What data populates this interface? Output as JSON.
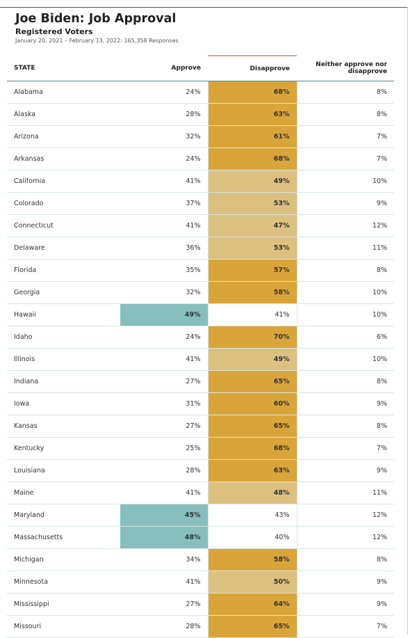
{
  "header": {
    "title": "Joe Biden: Job Approval",
    "subtitle": "Registered Voters",
    "dateline": "January 20, 2021 – February 13, 2022: 165,358 Responses"
  },
  "colors": {
    "disapprove_high": "#d9a53a",
    "disapprove_mid": "#dcc080",
    "approve_high": "#86bfbe",
    "neutral": "#ffffff",
    "grid_line": "#d6e6e1",
    "header_line": "#4a8a8a"
  },
  "chart_data": {
    "type": "table",
    "columns": [
      "STATE",
      "Approve",
      "Disapprove",
      "Neither approve nor disapprove"
    ],
    "rows": [
      {
        "state": "Alabama",
        "approve": 24,
        "disapprove": 68,
        "neither": 8
      },
      {
        "state": "Alaska",
        "approve": 28,
        "disapprove": 63,
        "neither": 8
      },
      {
        "state": "Arizona",
        "approve": 32,
        "disapprove": 61,
        "neither": 7
      },
      {
        "state": "Arkansas",
        "approve": 24,
        "disapprove": 68,
        "neither": 7
      },
      {
        "state": "California",
        "approve": 41,
        "disapprove": 49,
        "neither": 10
      },
      {
        "state": "Colorado",
        "approve": 37,
        "disapprove": 53,
        "neither": 9
      },
      {
        "state": "Connecticut",
        "approve": 41,
        "disapprove": 47,
        "neither": 12
      },
      {
        "state": "Delaware",
        "approve": 36,
        "disapprove": 53,
        "neither": 11
      },
      {
        "state": "Florida",
        "approve": 35,
        "disapprove": 57,
        "neither": 8
      },
      {
        "state": "Georgia",
        "approve": 32,
        "disapprove": 58,
        "neither": 10
      },
      {
        "state": "Hawaii",
        "approve": 49,
        "disapprove": 41,
        "neither": 10
      },
      {
        "state": "Idaho",
        "approve": 24,
        "disapprove": 70,
        "neither": 6
      },
      {
        "state": "Illinois",
        "approve": 41,
        "disapprove": 49,
        "neither": 10
      },
      {
        "state": "Indiana",
        "approve": 27,
        "disapprove": 65,
        "neither": 8
      },
      {
        "state": "Iowa",
        "approve": 31,
        "disapprove": 60,
        "neither": 9
      },
      {
        "state": "Kansas",
        "approve": 27,
        "disapprove": 65,
        "neither": 8
      },
      {
        "state": "Kentucky",
        "approve": 25,
        "disapprove": 68,
        "neither": 7
      },
      {
        "state": "Louisiana",
        "approve": 28,
        "disapprove": 63,
        "neither": 9
      },
      {
        "state": "Maine",
        "approve": 41,
        "disapprove": 48,
        "neither": 11
      },
      {
        "state": "Maryland",
        "approve": 45,
        "disapprove": 43,
        "neither": 12
      },
      {
        "state": "Massachusetts",
        "approve": 48,
        "disapprove": 40,
        "neither": 12
      },
      {
        "state": "Michigan",
        "approve": 34,
        "disapprove": 58,
        "neither": 8
      },
      {
        "state": "Minnesota",
        "approve": 41,
        "disapprove": 50,
        "neither": 9
      },
      {
        "state": "Mississippi",
        "approve": 27,
        "disapprove": 64,
        "neither": 9
      },
      {
        "state": "Missouri",
        "approve": 28,
        "disapprove": 65,
        "neither": 7
      }
    ]
  }
}
